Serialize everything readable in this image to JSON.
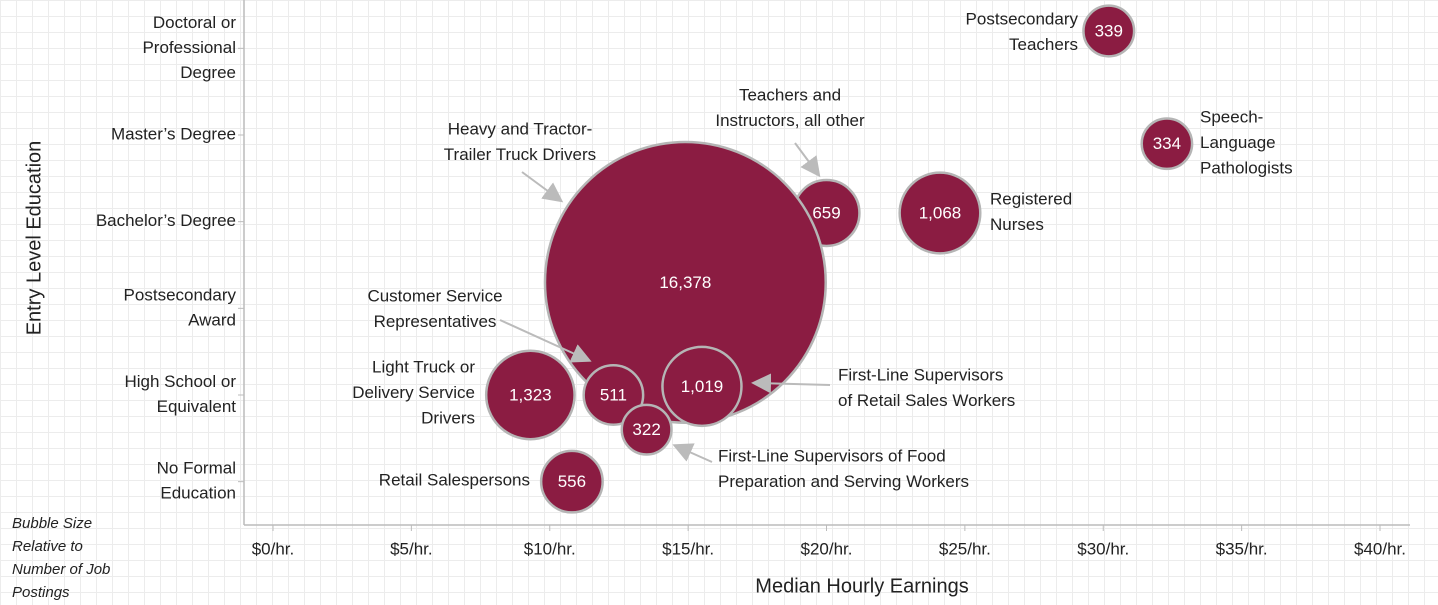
{
  "chart_data": {
    "type": "bubble",
    "x_label": "Median Hourly Earnings",
    "y_label": "Entry Level Education",
    "note": [
      "Bubble Size",
      "Relative to",
      "Number of Job",
      "Postings"
    ],
    "color": "#8b1c42",
    "xlim": [
      0,
      40
    ],
    "xticks": [
      {
        "value": 0,
        "label": "$0/hr."
      },
      {
        "value": 5,
        "label": "$5/hr."
      },
      {
        "value": 10,
        "label": "$10/hr."
      },
      {
        "value": 15,
        "label": "$15/hr."
      },
      {
        "value": 20,
        "label": "$20/hr."
      },
      {
        "value": 25,
        "label": "$25/hr."
      },
      {
        "value": 30,
        "label": "$30/hr."
      },
      {
        "value": 35,
        "label": "$35/hr."
      },
      {
        "value": 40,
        "label": "$40/hr."
      }
    ],
    "ylim": [
      0,
      6
    ],
    "yticks": [
      {
        "value": 0.5,
        "label": [
          "No Formal",
          "Education"
        ]
      },
      {
        "value": 1.5,
        "label": [
          "High School or",
          "Equivalent"
        ]
      },
      {
        "value": 2.5,
        "label": [
          "Postsecondary",
          "Award"
        ]
      },
      {
        "value": 3.5,
        "label": [
          "Bachelor’s Degree"
        ]
      },
      {
        "value": 4.5,
        "label": [
          "Master’s Degree"
        ]
      },
      {
        "value": 5.5,
        "label": [
          "Doctoral or",
          "Professional",
          "Degree"
        ]
      }
    ],
    "point_labels": [
      [
        "Postsecondary",
        "Teachers"
      ],
      [
        "Speech-",
        "Language",
        "Pathologists"
      ],
      [
        "Registered",
        "Nurses"
      ],
      [
        "Teachers and",
        "Instructors, all other"
      ],
      [
        "Heavy and Tractor-",
        "Trailer Truck Drivers"
      ],
      [
        "Customer Service",
        "Representatives"
      ],
      [
        "Light Truck or",
        "Delivery Service",
        "Drivers"
      ],
      [
        "First-Line Supervisors",
        "of Retail Sales Workers"
      ],
      [
        "First-Line Supervisors of Food",
        "Preparation and Serving Workers"
      ],
      [
        "Retail Salespersons"
      ]
    ],
    "x": [
      30.2,
      32.3,
      24.1,
      20.0,
      14.9,
      12.3,
      9.3,
      15.5,
      13.5,
      10.8
    ],
    "y": [
      5.7,
      4.4,
      3.6,
      3.6,
      2.8,
      1.5,
      1.5,
      1.6,
      1.1,
      0.5
    ],
    "sizes": [
      339,
      334,
      1068,
      659,
      16378,
      511,
      1323,
      1019,
      322,
      556
    ],
    "value_labels": [
      "339",
      "334",
      "1,068",
      "659",
      "16,378",
      "511",
      "1,323",
      "1,019",
      "322",
      "556"
    ]
  }
}
